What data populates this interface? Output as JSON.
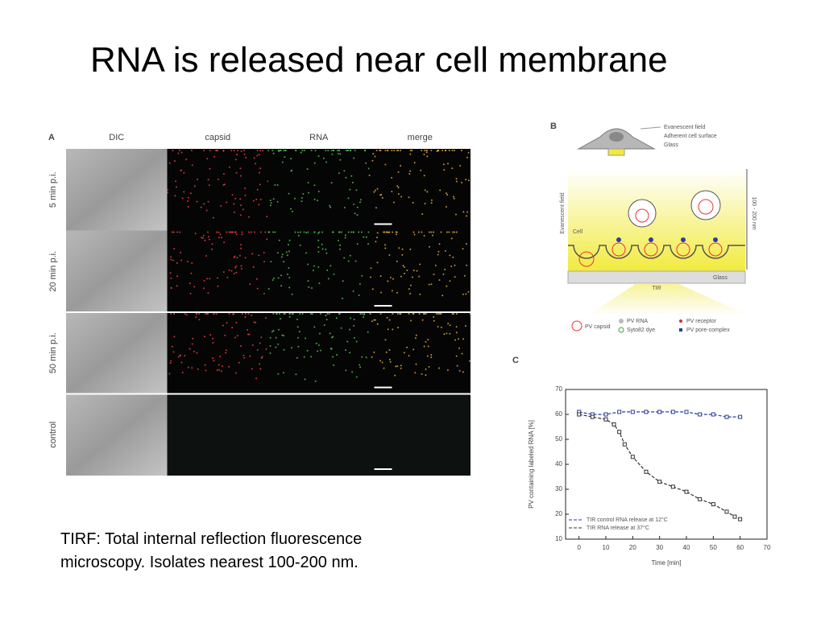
{
  "header": {
    "title": "RNA is released near cell membrane"
  },
  "panel_a": {
    "label": "A",
    "columns": [
      "DIC",
      "capsid",
      "RNA",
      "merge"
    ],
    "rows": [
      "5 min p.i.",
      "20 min p.i.",
      "50 min p.i.",
      "control"
    ]
  },
  "panel_b": {
    "label": "B",
    "top_labels": [
      "Evanescent field",
      "Adherent cell surface",
      "Glass"
    ],
    "side_label": "Evanescent field",
    "cell_label": "Cell",
    "depth_label": "100 - 200 nm",
    "glass_label": "Glass",
    "tir_label": "TIR",
    "legend": [
      "PV capsid",
      "PV RNA",
      "Syto82 dye",
      "PV receptor",
      "PV pore-complex"
    ]
  },
  "panel_c": {
    "label": "C",
    "type": "line",
    "xlabel": "Time [min]",
    "ylabel": "PV containing labeled RNA [%]",
    "xlim": [
      -5,
      70
    ],
    "xticks": [
      0,
      10,
      20,
      30,
      40,
      50,
      60,
      70
    ],
    "ylim": [
      10,
      70
    ],
    "yticks": [
      10,
      20,
      30,
      40,
      50,
      60,
      70
    ],
    "legend": "lower left",
    "series": [
      {
        "name": "TIR control RNA release at 12°C",
        "color": "#2a3f9e",
        "x": [
          0,
          5,
          10,
          15,
          20,
          25,
          30,
          35,
          40,
          45,
          50,
          55,
          60
        ],
        "values": [
          61,
          60,
          60,
          61,
          61,
          61,
          61,
          61,
          61,
          60,
          60,
          59,
          59
        ]
      },
      {
        "name": "TIR RNA release at 37°C",
        "color": "#333333",
        "x": [
          0,
          5,
          10,
          13,
          15,
          17,
          20,
          25,
          30,
          35,
          40,
          45,
          50,
          55,
          58,
          60
        ],
        "values": [
          60,
          59,
          58,
          56,
          53,
          48,
          43,
          37,
          33,
          31,
          29,
          26,
          24,
          21,
          19,
          18
        ]
      }
    ]
  },
  "caption": "TIRF: Total internal reflection fluorescence microscopy. Isolates nearest 100-200 nm."
}
